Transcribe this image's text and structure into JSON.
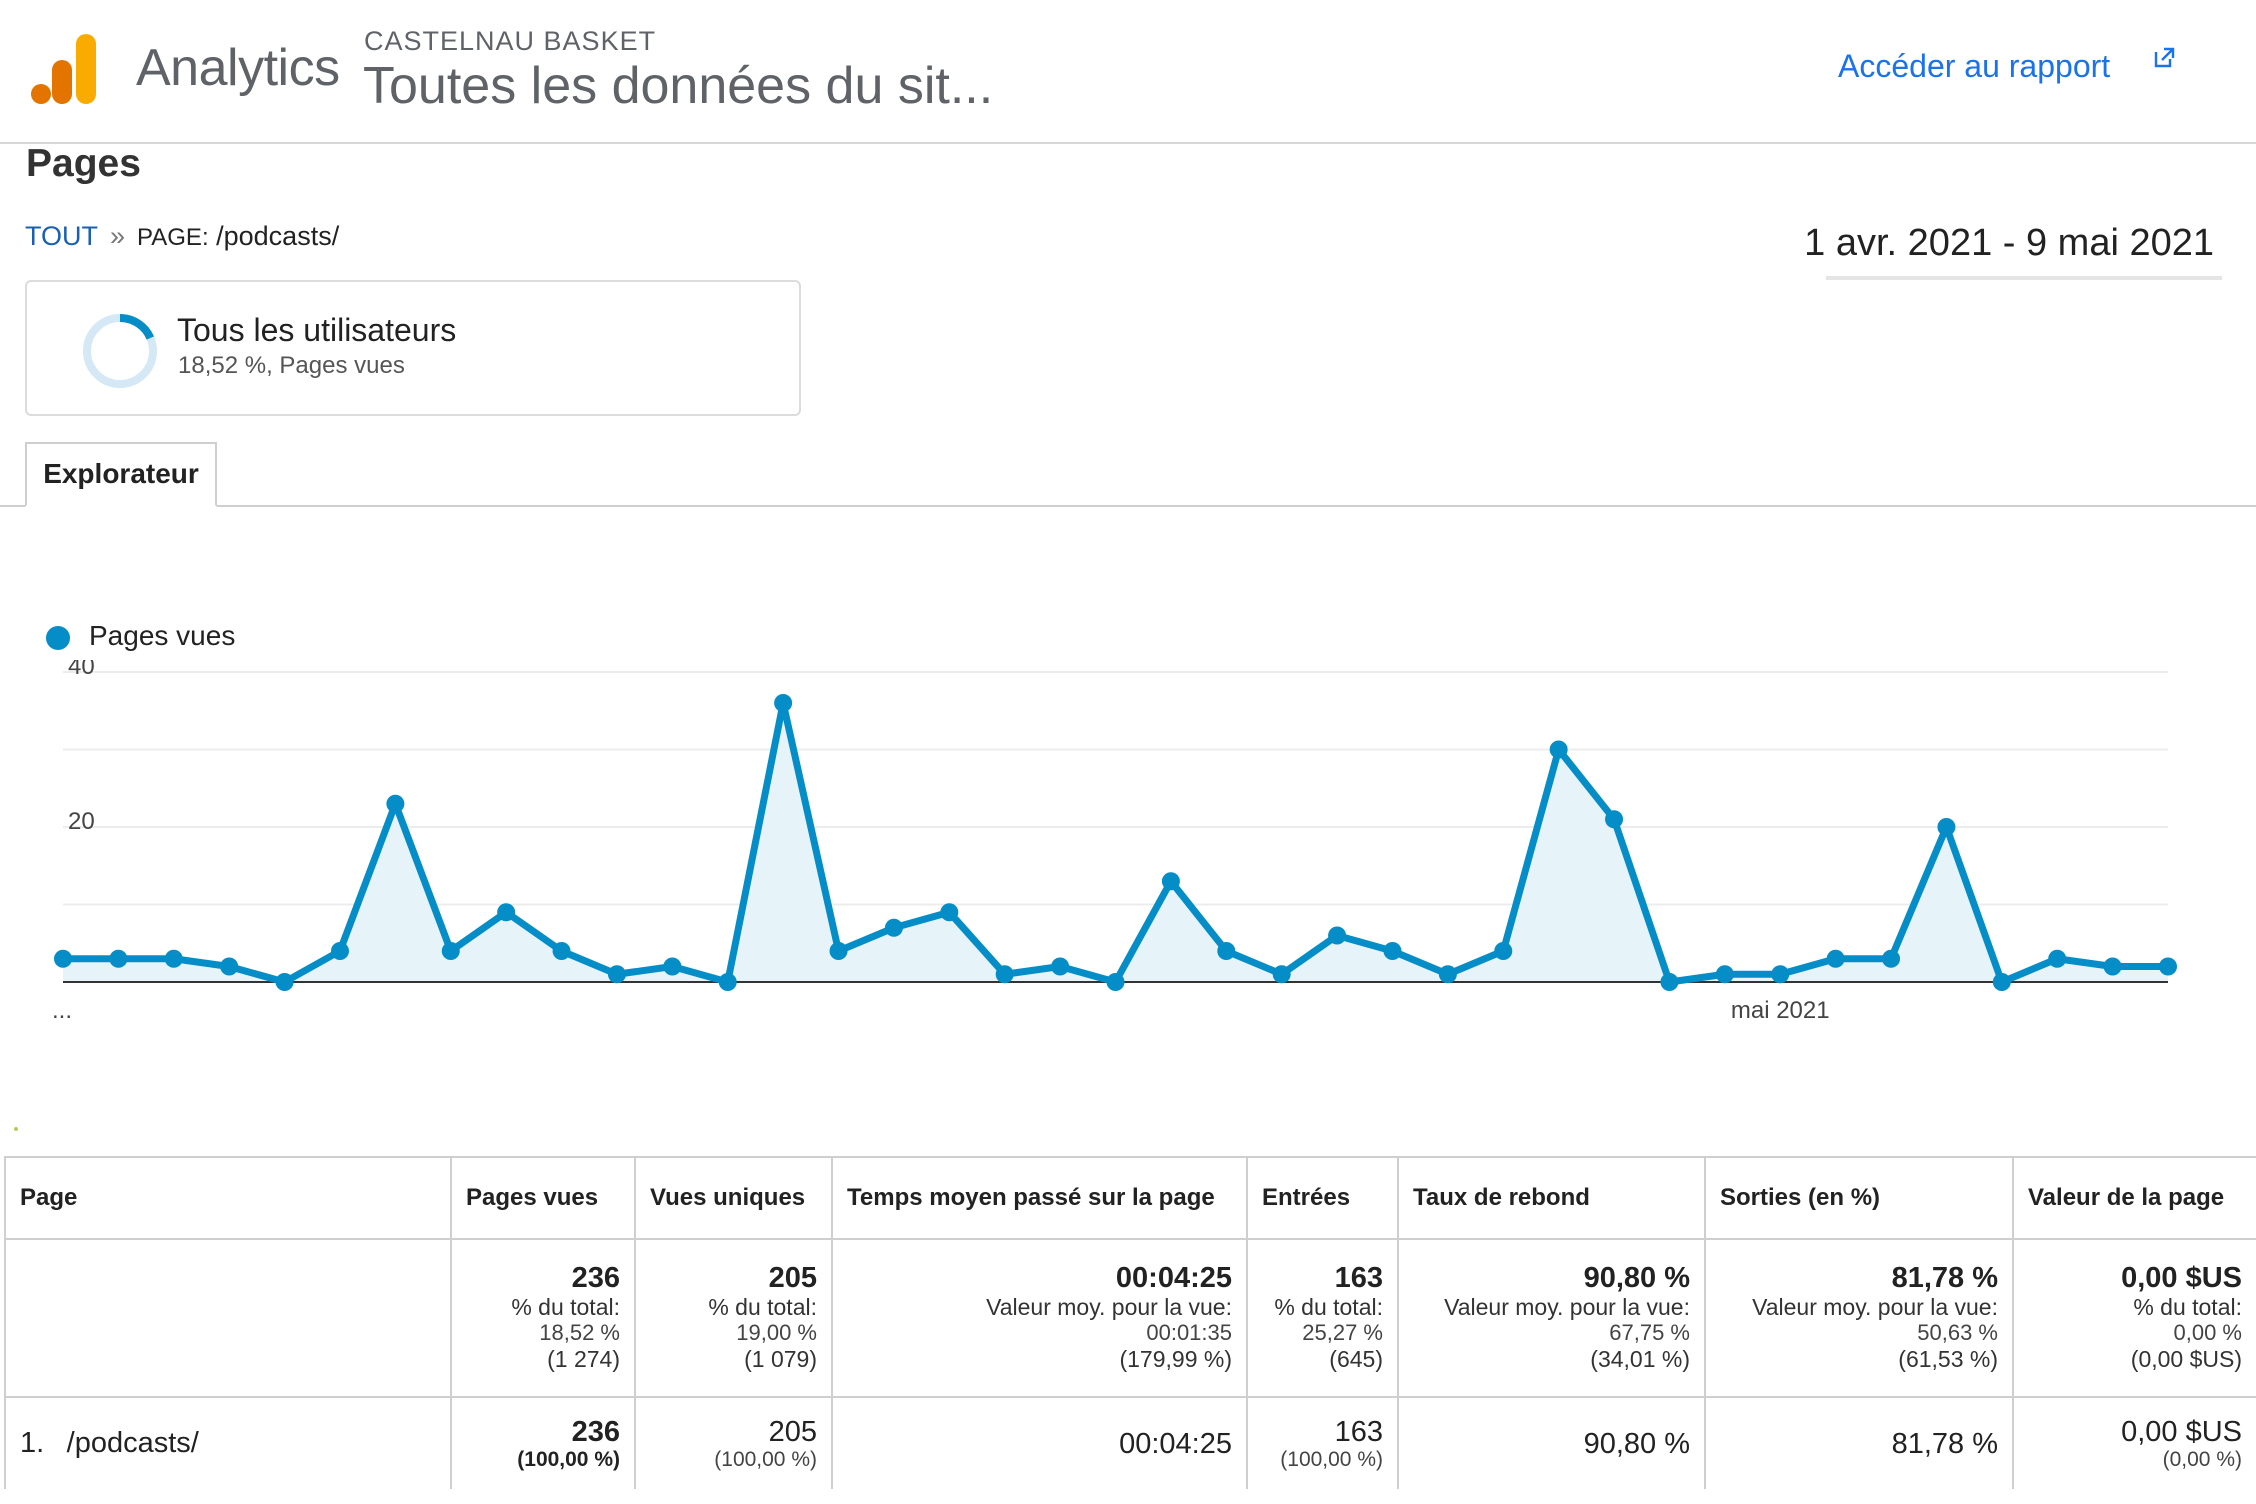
{
  "header": {
    "product": "Analytics",
    "account": "CASTELNAU BASKET",
    "property": "Toutes les données du sit...",
    "report_link": "Accéder au rapport"
  },
  "page": {
    "title": "Pages",
    "breadcrumb": {
      "root": "TOUT",
      "separator": "»",
      "dim_label": "PAGE:",
      "dim_value": "/podcasts/"
    },
    "date_range": "1 avr. 2021 - 9 mai 2021"
  },
  "segment": {
    "name": "Tous les utilisateurs",
    "meta": "18,52 %, Pages vues",
    "share": 0.1852
  },
  "tabs": [
    {
      "label": "Explorateur",
      "active": true
    }
  ],
  "colors": {
    "series": "#058dc7",
    "area": "#e6f4fa",
    "link": "#1a73e8",
    "logo_orange": "#f9ab00",
    "logo_dark": "#e37400"
  },
  "icons": {
    "logo": "analytics-logo-icon",
    "external": "external-link-icon",
    "segment": "segment-ring-icon"
  },
  "chart_data": {
    "type": "area",
    "series": [
      {
        "name": "Pages vues",
        "values": [
          3,
          3,
          3,
          2,
          0,
          4,
          23,
          4,
          9,
          4,
          1,
          2,
          0,
          36,
          4,
          7,
          9,
          1,
          2,
          0,
          13,
          4,
          1,
          6,
          4,
          1,
          4,
          30,
          21,
          0,
          1,
          1,
          3,
          3,
          20,
          0,
          3,
          2,
          2
        ]
      }
    ],
    "x_labels": [
      "...",
      "mai 2021"
    ],
    "x_label_index": [
      0,
      30
    ],
    "y_ticks": [
      20,
      40
    ],
    "ylim": [
      0,
      40
    ],
    "grid": true,
    "legend": "top-left"
  },
  "table": {
    "columns": [
      "Page",
      "Pages vues",
      "Vues uniques",
      "Temps moyen passé sur la page",
      "Entrées",
      "Taux de rebond",
      "Sorties (en %)",
      "Valeur de la page"
    ],
    "totals": [
      {
        "value": "236",
        "caption": "% du total:",
        "detail": "18,52 %",
        "extra": "(1 274)"
      },
      {
        "value": "205",
        "caption": "% du total:",
        "detail": "19,00 %",
        "extra": "(1 079)"
      },
      {
        "value": "00:04:25",
        "caption": "Valeur moy. pour la vue:",
        "detail": "00:01:35",
        "extra": "(179,99 %)"
      },
      {
        "value": "163",
        "caption": "% du total:",
        "detail": "25,27 %",
        "extra": "(645)"
      },
      {
        "value": "90,80 %",
        "caption": "Valeur moy. pour la vue:",
        "detail": "67,75 %",
        "extra": "(34,01 %)"
      },
      {
        "value": "81,78 %",
        "caption": "Valeur moy. pour la vue:",
        "detail": "50,63 %",
        "extra": "(61,53 %)"
      },
      {
        "value": "0,00 $US",
        "caption": "% du total:",
        "detail": "0,00 %",
        "extra": "(0,00 $US)"
      }
    ],
    "rows": [
      {
        "num": "1.",
        "page": "/podcasts/",
        "pageviews": "236",
        "pageviews_pct": "(100,00 %)",
        "unique": "205",
        "unique_pct": "(100,00 %)",
        "avg_time": "00:04:25",
        "entrances": "163",
        "entrances_pct": "(100,00 %)",
        "bounce": "90,80 %",
        "exit": "81,78 %",
        "value": "0,00 $US",
        "value_pct": "(0,00 %)"
      }
    ]
  }
}
